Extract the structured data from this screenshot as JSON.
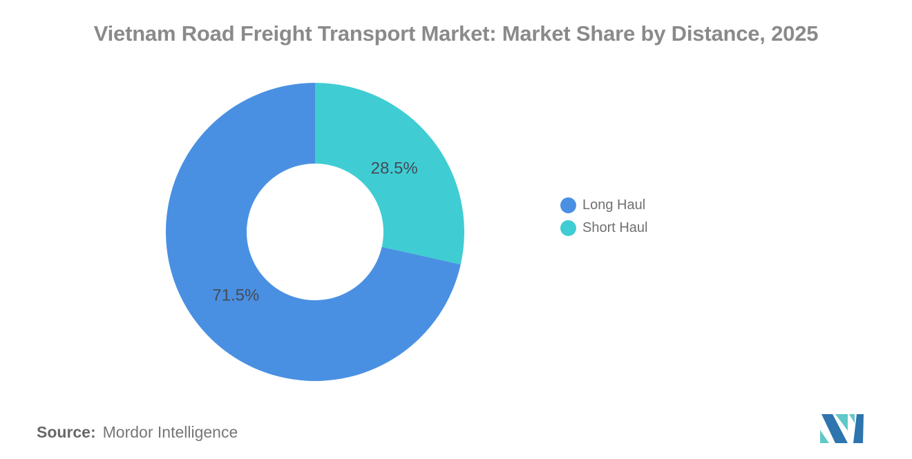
{
  "title": "Vietnam Road Freight Transport Market: Market Share by Distance, 2025",
  "source": {
    "prefix": "Source:",
    "text": "Mordor Intelligence"
  },
  "logo": {
    "name": "mordor-intelligence-logo",
    "blue": "#2E74AE",
    "teal": "#5FC9C7"
  },
  "chart_data": {
    "type": "pie",
    "subtype": "donut",
    "title": "Vietnam Road Freight Transport Market: Market Share by Distance, 2025",
    "legend_position": "right",
    "inner_radius_ratio": 0.46,
    "start_angle_deg": 0,
    "slices": [
      {
        "label": "Long Haul",
        "value": 71.5,
        "display": "71.5%",
        "color": "#4A90E2"
      },
      {
        "label": "Short Haul",
        "value": 28.5,
        "display": "28.5%",
        "color": "#3FCDD3"
      }
    ],
    "label_color": "#454b58",
    "background": "#ffffff"
  }
}
